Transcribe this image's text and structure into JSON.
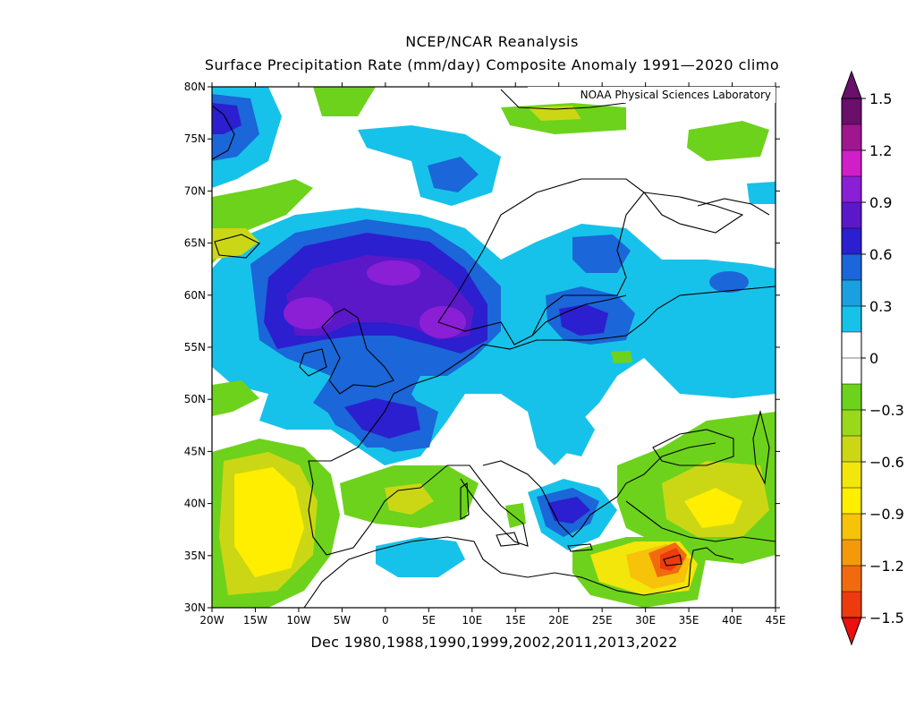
{
  "header": {
    "title": "NCEP/NCAR Reanalysis",
    "subtitle": "Surface Precipitation Rate (mm/day) Composite Anomaly 1991—2020 climo"
  },
  "credit": "NOAA Physical Sciences Laboratory",
  "footer": "Dec 1980,1988,1990,1999,2002,2011,2013,2022",
  "axes": {
    "lat_labels": [
      "80N",
      "75N",
      "70N",
      "65N",
      "60N",
      "55N",
      "50N",
      "45N",
      "40N",
      "35N",
      "30N"
    ],
    "lon_labels": [
      "20W",
      "15W",
      "10W",
      "5W",
      "0",
      "5E",
      "10E",
      "15E",
      "20E",
      "25E",
      "30E",
      "35E",
      "40E",
      "45E"
    ]
  },
  "colorbar": {
    "labels": [
      "1.5",
      "1.2",
      "0.9",
      "0.6",
      "0.3",
      "0",
      "-0.3",
      "-0.6",
      "-0.9",
      "-1.2",
      "-1.5"
    ],
    "colors": [
      "#6a0f6a",
      "#a0168f",
      "#d01ec8",
      "#8a1fd6",
      "#5b18c8",
      "#2b1fcf",
      "#1b66d8",
      "#1aa0e0",
      "#17c2ea",
      "#ffffff",
      "#ffffff",
      "#6dd21c",
      "#9ad81b",
      "#cbd715",
      "#f2e60b",
      "#ffee00",
      "#f6c20a",
      "#f49a0a",
      "#f16b0e",
      "#ed3a0f"
    ]
  },
  "colors": {
    "land": "#ffffff",
    "coast": "#000000"
  },
  "regions": [
    {
      "name": "north-atlantic-wet",
      "color": "#17c2ea"
    },
    {
      "name": "scotland-north-sea-max",
      "color": "#8a1fd6"
    },
    {
      "name": "iberia-dry",
      "color": "#ffee00"
    },
    {
      "name": "cyprus-dry-max",
      "color": "#ed3a0f"
    },
    {
      "name": "greece-wet",
      "color": "#2b1fcf"
    }
  ]
}
